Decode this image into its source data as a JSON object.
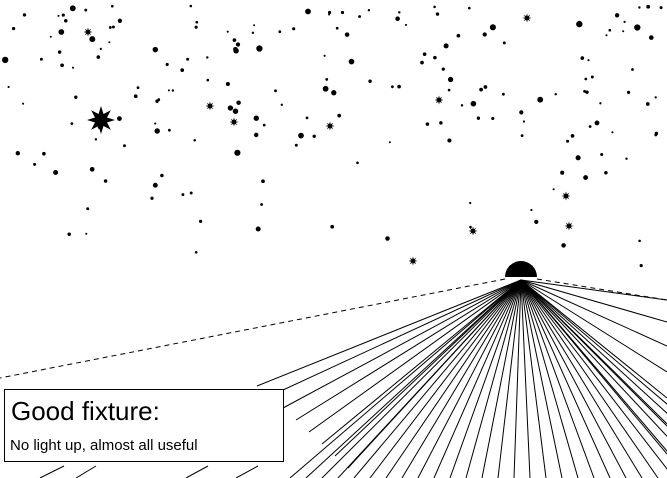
{
  "caption": {
    "title": "Good fixture:",
    "subtitle": "No light up, almost all useful"
  },
  "colors": {
    "background": "#ffffff",
    "ink": "#000000"
  },
  "icons": {
    "fixture": "semicircle-lamp-icon",
    "big_star": "eight-point-star-icon"
  }
}
